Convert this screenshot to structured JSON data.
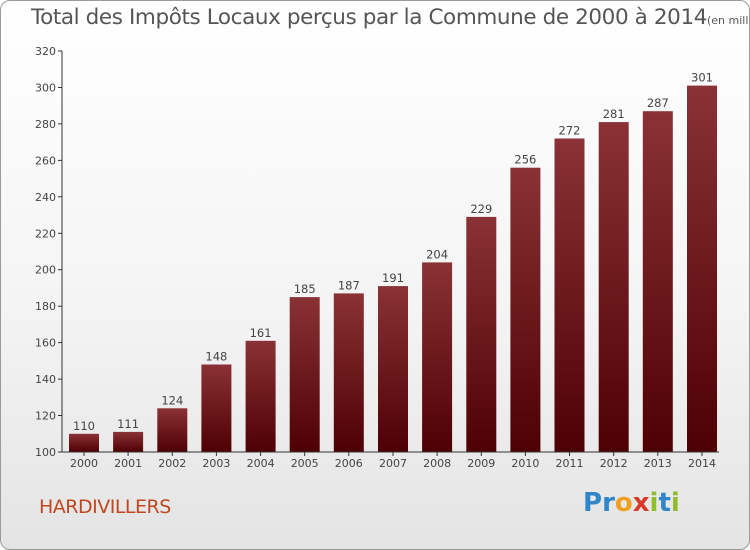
{
  "title": "Total des Impôts Locaux perçus par la Commune de 2000 à 2014",
  "subtitle": "(en milliers d'€)",
  "commune": "HARDIVILLERS",
  "logo": {
    "letters": [
      "P",
      "r",
      "o",
      "x",
      "i",
      "t",
      "i"
    ]
  },
  "colors": {
    "bar_top": "#8a3236",
    "bar_bottom": "#4e0003",
    "axis": "#333333",
    "title": "#555555",
    "commune": "#c0471f"
  },
  "chart_data": {
    "type": "bar",
    "title": "Total des Impôts Locaux perçus par la Commune de 2000 à 2014",
    "subtitle": "(en milliers d'€)",
    "xlabel": "",
    "ylabel": "",
    "categories": [
      "2000",
      "2001",
      "2002",
      "2003",
      "2004",
      "2005",
      "2006",
      "2007",
      "2008",
      "2009",
      "2010",
      "2011",
      "2012",
      "2013",
      "2014"
    ],
    "values": [
      110,
      111,
      124,
      148,
      161,
      185,
      187,
      191,
      204,
      229,
      256,
      272,
      281,
      287,
      301
    ],
    "ylim": [
      100,
      320
    ],
    "yticks": [
      100,
      120,
      140,
      160,
      180,
      200,
      220,
      240,
      260,
      280,
      300,
      320
    ],
    "grid": false
  }
}
